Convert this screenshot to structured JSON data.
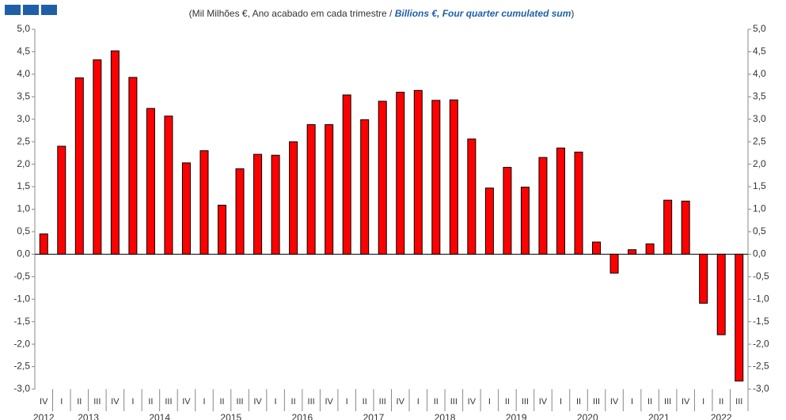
{
  "chart_data": {
    "type": "bar",
    "title": [
      "(Mil Milhões €, Ano acabado em cada trimestre / ",
      "Billions €, Four quarter cumulated sum",
      ")"
    ],
    "categories": [
      "IV",
      "I",
      "II",
      "III",
      "IV",
      "I",
      "II",
      "III",
      "IV",
      "I",
      "II",
      "III",
      "IV",
      "I",
      "II",
      "III",
      "IV",
      "I",
      "II",
      "III",
      "IV",
      "I",
      "II",
      "III",
      "IV",
      "I",
      "II",
      "III",
      "IV",
      "I",
      "II",
      "III",
      "IV",
      "I",
      "II",
      "III",
      "IV",
      "I",
      "II",
      "III"
    ],
    "years": [
      "2012",
      "2013",
      "2014",
      "2015",
      "2016",
      "2017",
      "2018",
      "2019",
      "2020",
      "2021",
      "2022"
    ],
    "values": [
      0.45,
      2.4,
      3.92,
      4.32,
      4.52,
      3.93,
      3.24,
      3.07,
      2.03,
      2.3,
      1.09,
      1.9,
      2.22,
      2.2,
      2.5,
      2.88,
      2.88,
      3.54,
      2.99,
      3.4,
      3.6,
      3.64,
      3.42,
      3.43,
      2.56,
      1.47,
      1.93,
      1.49,
      2.15,
      2.36,
      2.27,
      0.27,
      -0.42,
      0.1,
      0.23,
      1.2,
      1.18,
      -1.09,
      -1.79,
      -2.82
    ],
    "color": "#ff0000",
    "ylim": [
      -3,
      5
    ],
    "yticks": [
      {
        "value": -3,
        "label": "-3,0"
      },
      {
        "value": -2.5,
        "label": "-2,5"
      },
      {
        "value": -2,
        "label": "-2,0"
      },
      {
        "value": -1.5,
        "label": "-1,5"
      },
      {
        "value": -1,
        "label": "-1,0"
      },
      {
        "value": -0.5,
        "label": "-0,5"
      },
      {
        "value": 0,
        "label": "0,0"
      },
      {
        "value": 0.5,
        "label": "0,5"
      },
      {
        "value": 1,
        "label": "1,0"
      },
      {
        "value": 1.5,
        "label": "1,5"
      },
      {
        "value": 2,
        "label": "2,0"
      },
      {
        "value": 2.5,
        "label": "2,5"
      },
      {
        "value": 3,
        "label": "3,0"
      },
      {
        "value": 3.5,
        "label": "3,5"
      },
      {
        "value": 4,
        "label": "4,0"
      },
      {
        "value": 4.5,
        "label": "4,5"
      },
      {
        "value": 5,
        "label": "5,0"
      }
    ]
  }
}
